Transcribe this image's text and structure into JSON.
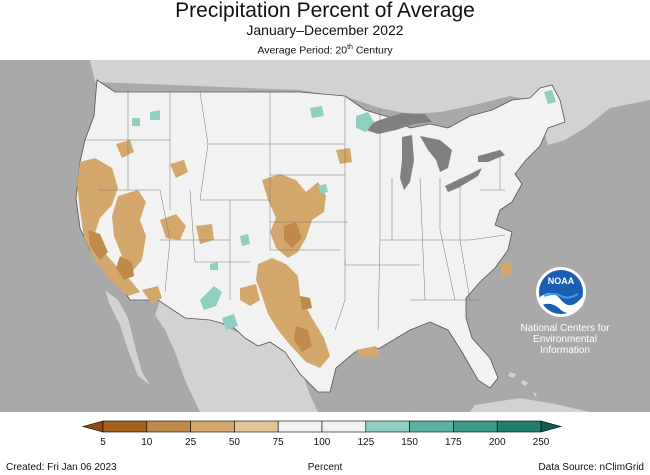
{
  "header": {
    "title": "Precipitation Percent of Average",
    "subtitle": "January–December 2022",
    "period_prefix": "Average Period: 20",
    "period_sup": "th",
    "period_suffix": " Century"
  },
  "logo": {
    "text": "NOAA",
    "agency_lines": [
      "National Centers for",
      "Environmental",
      "Information"
    ]
  },
  "legend": {
    "ticks": [
      "5",
      "10",
      "25",
      "50",
      "75",
      "100",
      "125",
      "150",
      "175",
      "200",
      "250"
    ],
    "colors": [
      "#8a4d10",
      "#a4621e",
      "#bf8a4c",
      "#d4a86d",
      "#e3c597",
      "#f2f2f2",
      "#f2f2f2",
      "#8fcec0",
      "#5db3a2",
      "#3b9a88",
      "#1f7e6c",
      "#0d5c4e"
    ],
    "unit": "Percent"
  },
  "footer": {
    "created": "Created: Fri Jan 06 2023",
    "source": "Data Source: nClimGrid"
  },
  "map_colors": {
    "ocean": "#a9a9a9",
    "land_outside": "#d2d2d2",
    "conus": "#f2f2f2",
    "lakes": "#808080",
    "dry": "#d4a86d",
    "very_dry": "#bf8a4c",
    "wet": "#8fcec0"
  }
}
